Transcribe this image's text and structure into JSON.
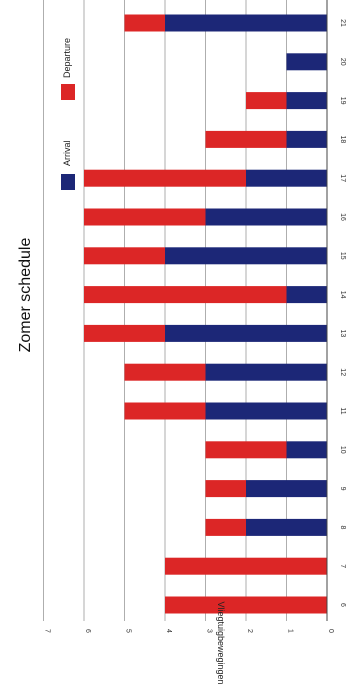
{
  "chart_data": {
    "type": "bar",
    "stacked": true,
    "orientation": "rotated-90",
    "title": "Zomer schedule",
    "xlabel": "",
    "ylabel": "Vliegtuigbewegingen",
    "ylim": [
      0,
      7
    ],
    "yticks": [
      "0",
      "1",
      "2",
      "3",
      "4",
      "5",
      "6",
      "7"
    ],
    "grid": true,
    "legend_position": "top",
    "categories": [
      "6",
      "7",
      "8",
      "9",
      "10",
      "11",
      "12",
      "13",
      "14",
      "15",
      "16",
      "17",
      "18",
      "19",
      "20",
      "21",
      "22"
    ],
    "series": [
      {
        "name": "Arrival",
        "color": "#1c2777",
        "values": [
          0,
          0,
          2,
          2,
          1,
          3,
          3,
          4,
          1,
          4,
          3,
          2,
          1,
          1,
          1,
          4,
          5
        ]
      },
      {
        "name": "Departure",
        "color": "#dc2626",
        "values": [
          4,
          4,
          1,
          1,
          2,
          2,
          2,
          2,
          5,
          2,
          3,
          4,
          2,
          1,
          0,
          1,
          1
        ]
      }
    ]
  }
}
